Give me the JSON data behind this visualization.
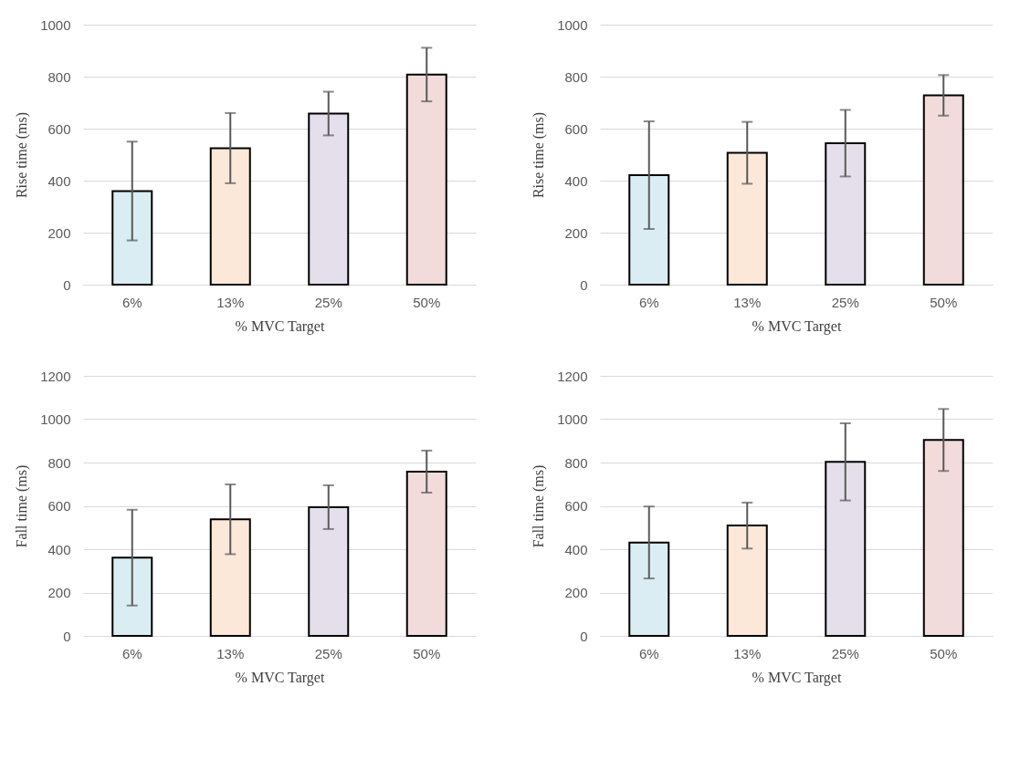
{
  "chart_data": [
    {
      "type": "bar",
      "categories": [
        "6%",
        "13%",
        "25%",
        "50%"
      ],
      "values": [
        360,
        525,
        658,
        808
      ],
      "errors": [
        190,
        135,
        84,
        103
      ],
      "colors": [
        "#daedf3",
        "#fce8d9",
        "#e5dfec",
        "#f1dcdb"
      ],
      "xlabel": "% MVC Target",
      "ylabel": "Rise time (ms)",
      "ylim": [
        0,
        1000
      ],
      "yticks": [
        0,
        200,
        400,
        600,
        800,
        1000
      ],
      "grid": "y"
    },
    {
      "type": "bar",
      "categories": [
        "6%",
        "13%",
        "25%",
        "50%"
      ],
      "values": [
        421,
        507,
        544,
        728
      ],
      "errors": [
        207,
        119,
        128,
        78
      ],
      "colors": [
        "#daedf3",
        "#fce8d9",
        "#e5dfec",
        "#f1dcdb"
      ],
      "xlabel": "% MVC Target",
      "ylabel": "Rise time (ms)",
      "ylim": [
        0,
        1000
      ],
      "yticks": [
        0,
        200,
        400,
        600,
        800,
        1000
      ],
      "grid": "y"
    },
    {
      "type": "bar",
      "categories": [
        "6%",
        "13%",
        "25%",
        "50%"
      ],
      "values": [
        361,
        538,
        594,
        758
      ],
      "errors": [
        221,
        161,
        101,
        97
      ],
      "colors": [
        "#daedf3",
        "#fce8d9",
        "#e5dfec",
        "#f1dcdb"
      ],
      "xlabel": "% MVC Target",
      "ylabel": "Fall time (ms)",
      "ylim": [
        0,
        1200
      ],
      "yticks": [
        0,
        200,
        400,
        600,
        800,
        1000,
        1200
      ],
      "grid": "y"
    },
    {
      "type": "bar",
      "categories": [
        "6%",
        "13%",
        "25%",
        "50%"
      ],
      "values": [
        431,
        509,
        803,
        904
      ],
      "errors": [
        166,
        106,
        178,
        143
      ],
      "colors": [
        "#daedf3",
        "#fce8d9",
        "#e5dfec",
        "#f1dcdb"
      ],
      "xlabel": "% MVC Target",
      "ylabel": "Fall time (ms)",
      "ylim": [
        0,
        1200
      ],
      "yticks": [
        0,
        200,
        400,
        600,
        800,
        1000,
        1200
      ],
      "grid": "y"
    }
  ]
}
